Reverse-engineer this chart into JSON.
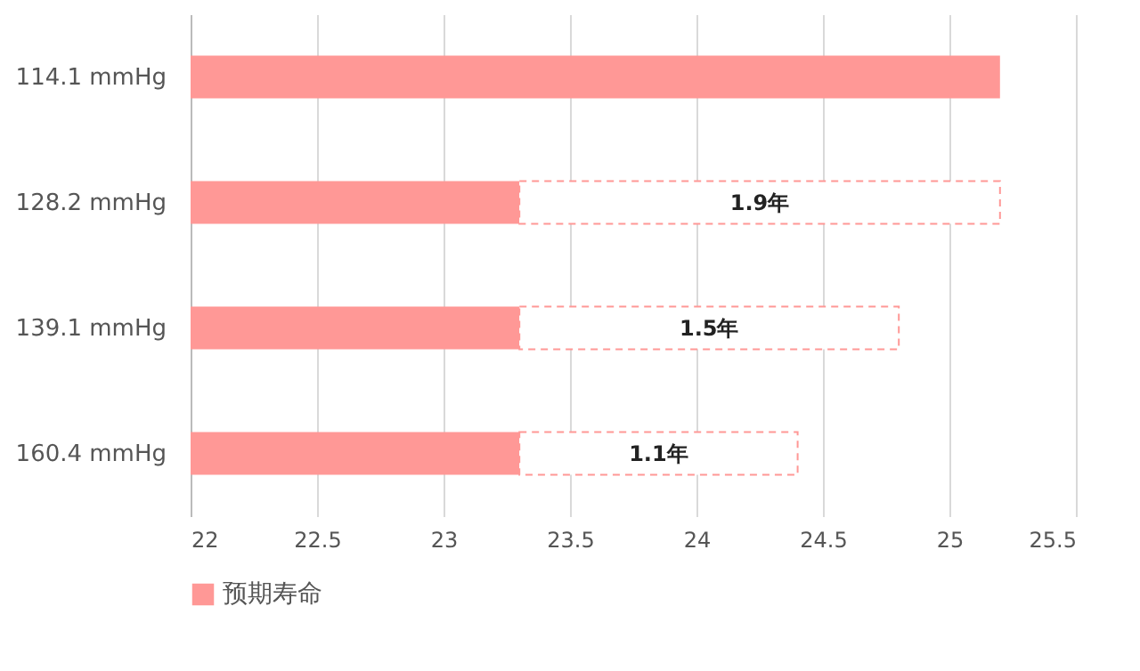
{
  "chart_data": {
    "type": "bar",
    "orientation": "horizontal",
    "stacked": true,
    "categories": [
      "114.1 mmHg",
      "128.2 mmHg",
      "139.1 mmHg",
      "160.4 mmHg"
    ],
    "series": [
      {
        "name": "预期寿命",
        "color": "#ff9896",
        "values": [
          25.2,
          23.3,
          23.3,
          23.3
        ]
      },
      {
        "color": "#ffffff",
        "line_style": "dashed",
        "base": [
          null,
          23.3,
          23.3,
          23.3
        ],
        "values": [
          null,
          1.9,
          1.5,
          1.1
        ],
        "value_labels": [
          null,
          "1.9年",
          "1.5年",
          "1.1年"
        ]
      }
    ],
    "xlim": [
      22,
      25.5
    ],
    "xticks": [
      22,
      22.5,
      23,
      23.5,
      24,
      24.5,
      25,
      25.5
    ],
    "grid": "x",
    "legend": "bottom"
  }
}
